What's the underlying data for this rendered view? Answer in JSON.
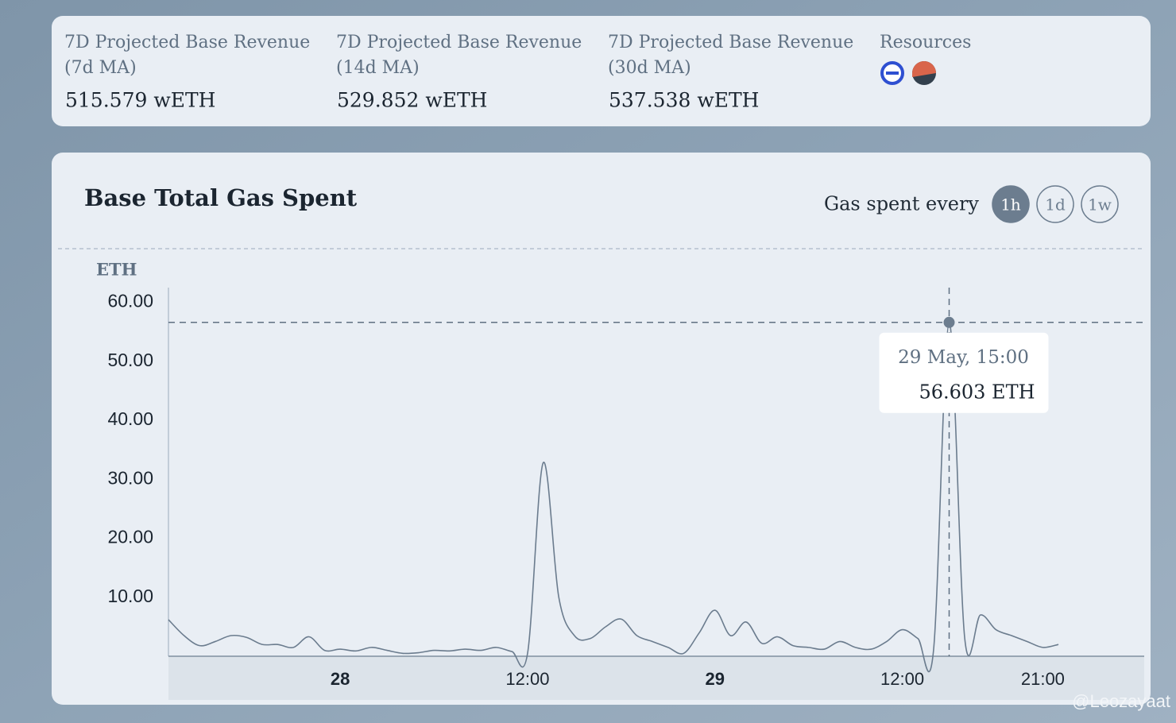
{
  "stats": [
    {
      "label": "7D Projected Base Revenue (7d MA)",
      "value": "515.579 wETH"
    },
    {
      "label": "7D Projected Base Revenue (14d MA)",
      "value": "529.852 wETH"
    },
    {
      "label": "7D Projected Base Revenue (30d MA)",
      "value": "537.538 wETH"
    }
  ],
  "resources": {
    "title": "Resources"
  },
  "interval": {
    "label": "Gas spent every",
    "options": [
      "1h",
      "1d",
      "1w"
    ],
    "active": "1h"
  },
  "watermark": "@Leozayaat",
  "chart_data": {
    "type": "line",
    "title": "Base Total Gas Spent",
    "y_label": "ETH",
    "color": "#6b7c8e",
    "x": [
      "27 May, 13:00",
      "27 May, 14:00",
      "27 May, 15:00",
      "27 May, 16:00",
      "27 May, 17:00",
      "27 May, 18:00",
      "27 May, 19:00",
      "27 May, 20:00",
      "27 May, 21:00",
      "27 May, 22:00",
      "27 May, 23:00",
      "28 May, 00:00",
      "28 May, 01:00",
      "28 May, 02:00",
      "28 May, 03:00",
      "28 May, 04:00",
      "28 May, 05:00",
      "28 May, 06:00",
      "28 May, 07:00",
      "28 May, 08:00",
      "28 May, 09:00",
      "28 May, 10:00",
      "28 May, 11:00",
      "28 May, 12:00",
      "28 May, 13:00",
      "28 May, 14:00",
      "28 May, 15:00",
      "28 May, 16:00",
      "28 May, 17:00",
      "28 May, 18:00",
      "28 May, 19:00",
      "28 May, 20:00",
      "28 May, 21:00",
      "28 May, 22:00",
      "28 May, 23:00",
      "29 May, 00:00",
      "29 May, 01:00",
      "29 May, 02:00",
      "29 May, 03:00",
      "29 May, 04:00",
      "29 May, 05:00",
      "29 May, 06:00",
      "29 May, 07:00",
      "29 May, 08:00",
      "29 May, 09:00",
      "29 May, 10:00",
      "29 May, 11:00",
      "29 May, 12:00",
      "29 May, 13:00",
      "29 May, 14:00",
      "29 May, 15:00",
      "29 May, 16:00",
      "29 May, 17:00",
      "29 May, 18:00",
      "29 May, 19:00",
      "29 May, 20:00",
      "29 May, 21:00",
      "29 May, 22:00"
    ],
    "values": [
      6.2,
      3.5,
      1.8,
      2.5,
      3.5,
      3.2,
      2,
      2,
      1.5,
      3.3,
      1,
      1.2,
      0.9,
      1.5,
      1,
      0.5,
      0.6,
      1,
      0.9,
      1.2,
      1,
      1.5,
      0.8,
      0.5,
      32.8,
      10,
      3.5,
      3,
      5,
      6.3,
      3.5,
      2.5,
      1.5,
      0.5,
      4,
      7.8,
      3.5,
      5.8,
      2.2,
      3.3,
      1.8,
      1.5,
      1.2,
      2.5,
      1.5,
      1.2,
      2.5,
      4.5,
      3,
      1,
      56.603,
      3,
      7,
      4.5,
      3.5,
      2.5,
      1.5,
      2
    ],
    "value_labels": [
      null,
      null,
      null,
      null,
      null,
      null,
      null,
      null,
      null,
      null,
      null,
      null,
      null,
      null,
      null,
      null,
      null,
      null,
      null,
      null,
      null,
      null,
      null,
      null,
      null,
      null,
      null,
      null,
      null,
      null,
      null,
      null,
      null,
      null,
      null,
      null,
      null,
      null,
      null,
      null,
      null,
      null,
      null,
      null,
      null,
      null,
      null,
      null,
      null,
      null,
      "56.603 ETH",
      null,
      null,
      null,
      null,
      null,
      null,
      null
    ],
    "ylim": [
      0,
      62.5
    ],
    "yticks": [
      {
        "value": 10,
        "label": "10.00"
      },
      {
        "value": 20,
        "label": "20.00"
      },
      {
        "value": 30,
        "label": "30.00"
      },
      {
        "value": 40,
        "label": "40.00"
      },
      {
        "value": 50,
        "label": "50.00"
      },
      {
        "value": 60,
        "label": "60.00"
      }
    ],
    "xticks": [
      {
        "value": "28 May, 00:00",
        "label": "28"
      },
      {
        "value": "28 May, 12:00",
        "label": "12:00"
      },
      {
        "value": "29 May, 00:00",
        "label": "29"
      },
      {
        "value": "29 May, 12:00",
        "label": "12:00"
      },
      {
        "value": "29 May, 21:00",
        "label": "21:00"
      }
    ]
  }
}
